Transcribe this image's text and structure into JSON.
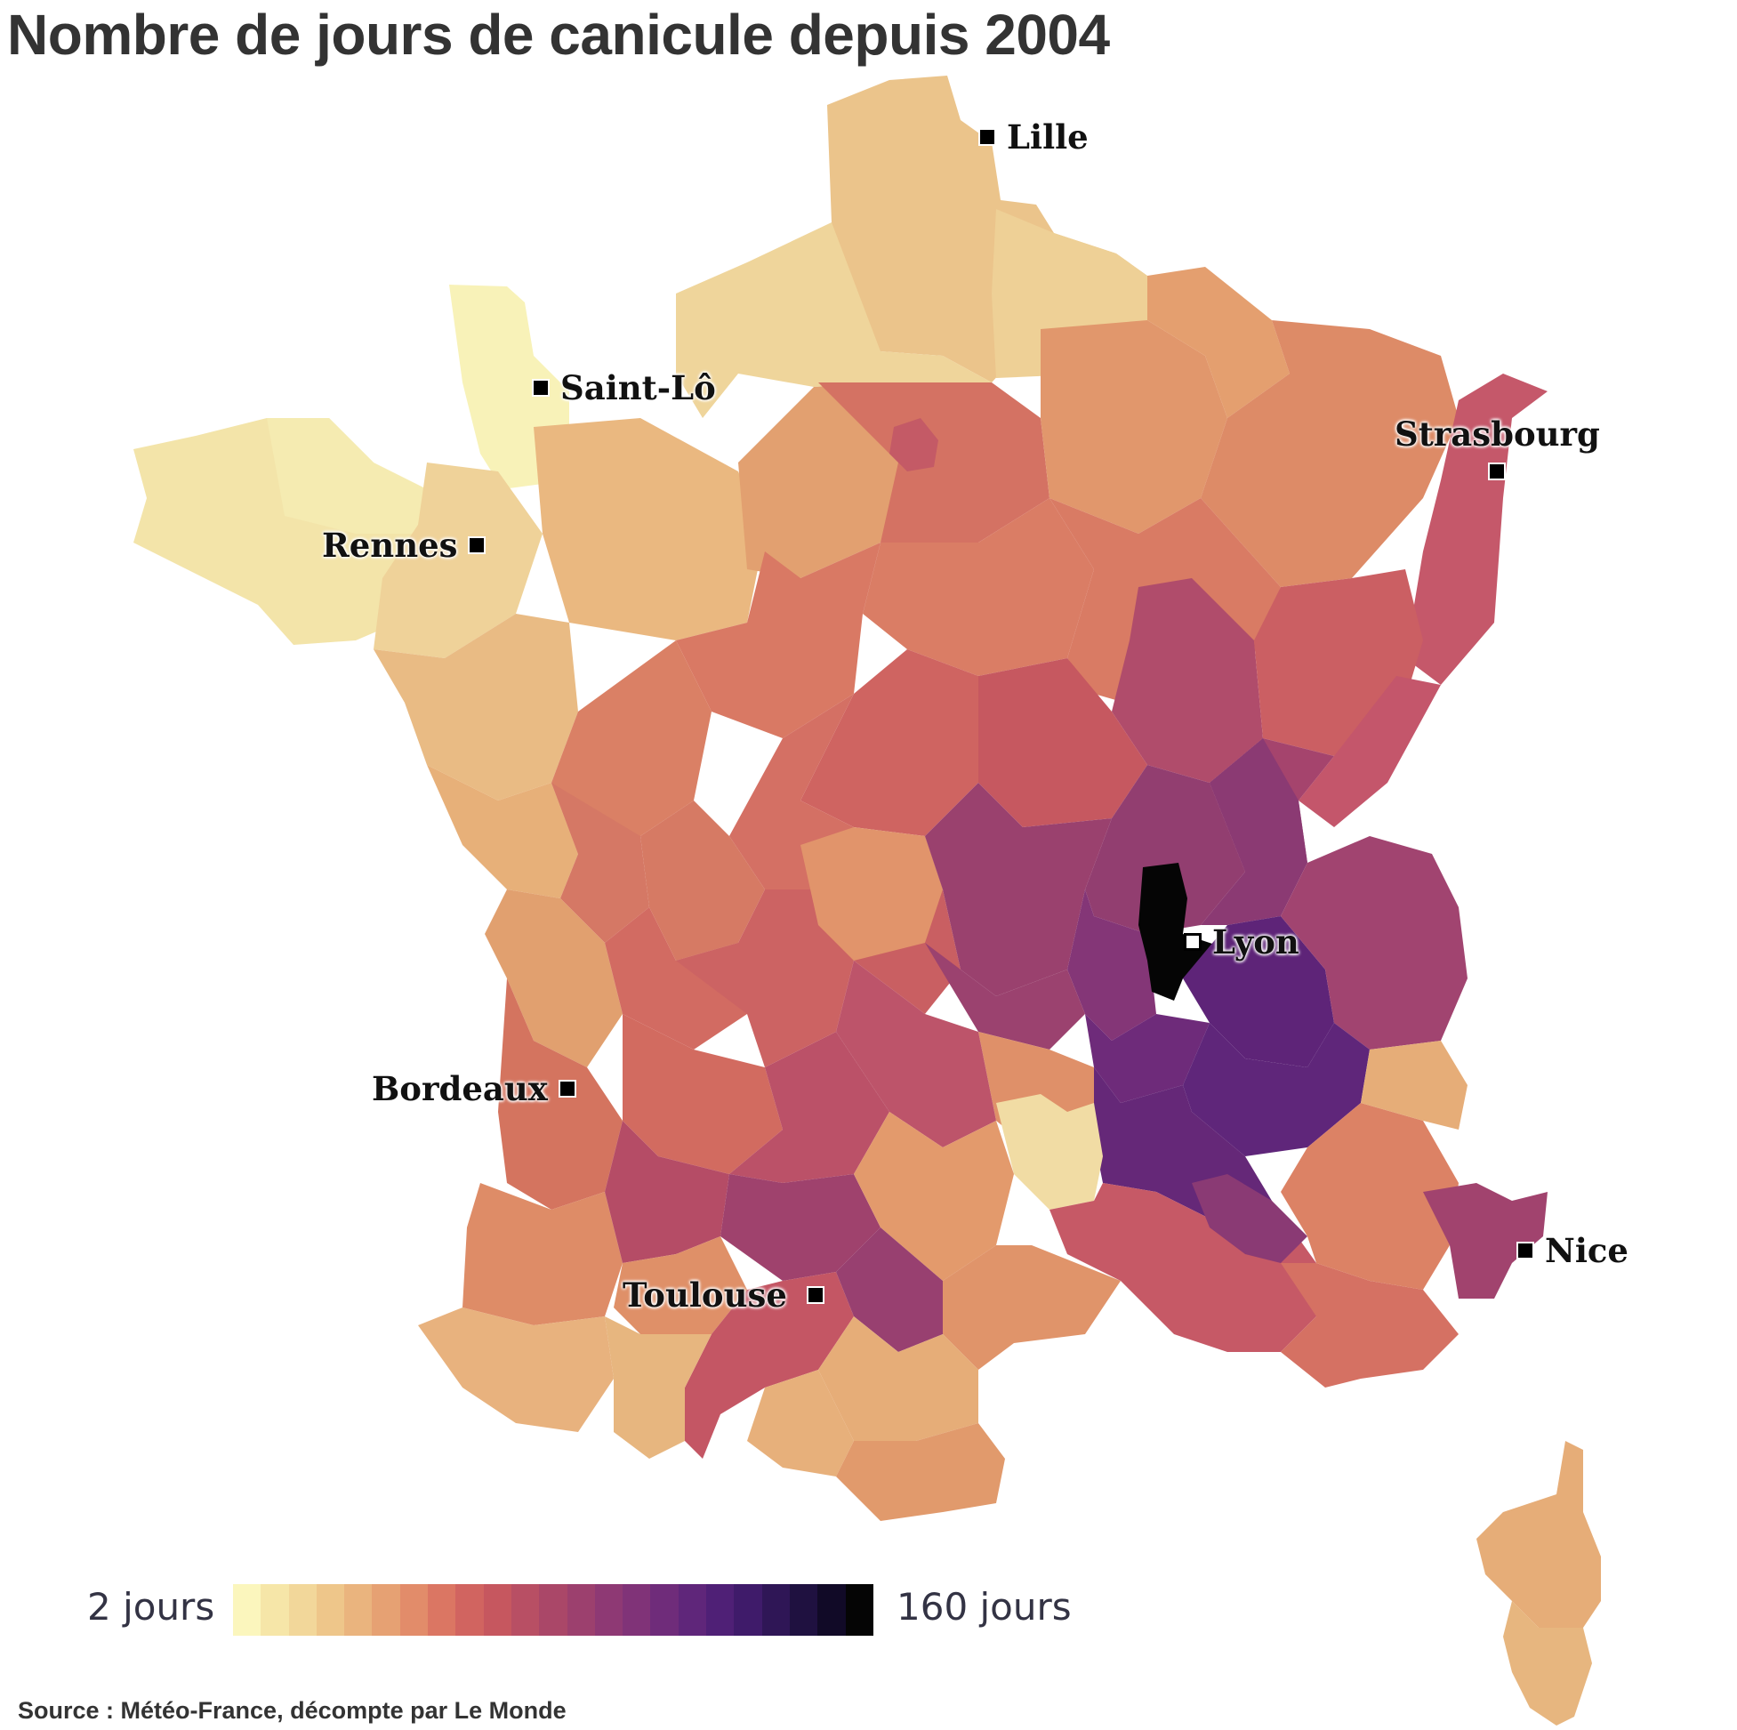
{
  "title": "Nombre de jours de canicule depuis 2004",
  "cities": [
    {
      "id": "lille",
      "name": "Lille",
      "marker": "filled"
    },
    {
      "id": "saint-lo",
      "name": "Saint-Lô",
      "marker": "filled"
    },
    {
      "id": "strasbourg",
      "name": "Strasbourg",
      "marker": "filled"
    },
    {
      "id": "rennes",
      "name": "Rennes",
      "marker": "filled"
    },
    {
      "id": "lyon",
      "name": "Lyon",
      "marker": "hollow"
    },
    {
      "id": "bordeaux",
      "name": "Bordeaux",
      "marker": "filled"
    },
    {
      "id": "nice",
      "name": "Nice",
      "marker": "filled"
    },
    {
      "id": "toulouse",
      "name": "Toulouse",
      "marker": "filled"
    }
  ],
  "legend": {
    "min_label": "2 jours",
    "max_label": "160 jours",
    "min": 2,
    "max": 160,
    "colors": [
      "#fbf6bd",
      "#f6e6a8",
      "#f2d79a",
      "#eec68a",
      "#eab47e",
      "#e6a173",
      "#e28c6a",
      "#db7663",
      "#d16460",
      "#c6575f",
      "#b84f64",
      "#aa4768",
      "#9c406e",
      "#8e3974",
      "#803378",
      "#6f2c7a",
      "#5f267a",
      "#4f2076",
      "#3f1b6a",
      "#2f1656",
      "#1f1140",
      "#110a27",
      "#050505"
    ]
  },
  "source": "Source : Météo-France, décompte par Le Monde"
}
